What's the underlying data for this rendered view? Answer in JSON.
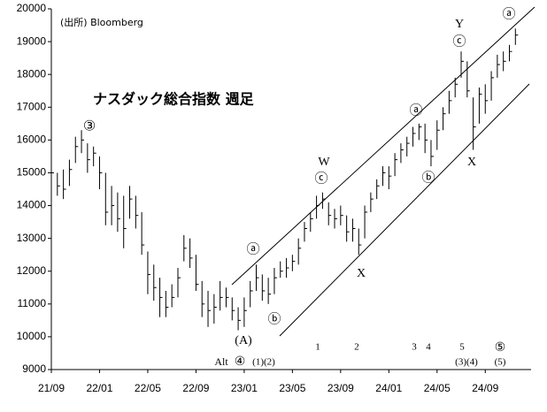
{
  "chart_data": {
    "type": "ohlc",
    "title": "ナスダック総合指数 週足",
    "source": "(出所) Bloomberg",
    "color": "#000000",
    "x": [
      0,
      0.5,
      1,
      1.5,
      2,
      2.5,
      3,
      3.5,
      4,
      4.5,
      5,
      5.5,
      6,
      6.5,
      7,
      7.5,
      8,
      8.5,
      9,
      9.5,
      10,
      10.5,
      11,
      11.5,
      12,
      12.5,
      13,
      13.5,
      14,
      14.5,
      15,
      15.5,
      16,
      16.5,
      17,
      17.5,
      18,
      18.5,
      19,
      19.5,
      20,
      20.5,
      21,
      21.5,
      22,
      22.5,
      23,
      23.5,
      24,
      24.5,
      25,
      25.5,
      26,
      26.5,
      27,
      27.5,
      28,
      28.5,
      29,
      29.5,
      30,
      30.5,
      31,
      31.5,
      32,
      32.5,
      33,
      33.5,
      34,
      34.5,
      35,
      35.5,
      36,
      36.5,
      37,
      37.5,
      38,
      38.5
    ],
    "high": [
      15300,
      15000,
      15100,
      15400,
      16100,
      16300,
      15900,
      15800,
      15500,
      15000,
      14600,
      14400,
      14300,
      14600,
      14300,
      13800,
      12600,
      12200,
      11800,
      11400,
      11600,
      12100,
      13100,
      13000,
      12500,
      11700,
      11400,
      11300,
      11700,
      11500,
      11200,
      10900,
      11200,
      11700,
      12200,
      11900,
      11800,
      12100,
      12300,
      12400,
      12500,
      13000,
      13500,
      13800,
      14300,
      14400,
      14100,
      13900,
      14000,
      13700,
      13600,
      13300,
      14000,
      14400,
      14800,
      15200,
      15200,
      15600,
      15900,
      16100,
      16400,
      16500,
      16500,
      16000,
      16600,
      17000,
      17500,
      17900,
      18700,
      18400,
      17300,
      17600,
      17700,
      18100,
      18600,
      18700,
      18900,
      19400
    ],
    "low": [
      14700,
      14300,
      14200,
      14600,
      15300,
      15600,
      15000,
      15200,
      14500,
      13400,
      13400,
      13200,
      12700,
      13600,
      13300,
      12500,
      11300,
      11100,
      10600,
      10600,
      10900,
      11200,
      12300,
      12100,
      11400,
      10600,
      10300,
      10400,
      10800,
      10900,
      10500,
      10200,
      10300,
      10900,
      11400,
      11100,
      11000,
      11300,
      11800,
      11800,
      12000,
      12200,
      12900,
      13200,
      13600,
      13900,
      13400,
      13300,
      13400,
      12900,
      12900,
      12500,
      13000,
      13800,
      14200,
      14600,
      14500,
      14900,
      15300,
      15500,
      15800,
      16000,
      15600,
      15200,
      15700,
      16300,
      16800,
      17300,
      17900,
      17300,
      15700,
      16500,
      16800,
      17200,
      17900,
      18100,
      18400,
      18900
    ],
    "close": [
      15000,
      14600,
      14500,
      15100,
      15800,
      16000,
      15400,
      15600,
      15000,
      13800,
      14000,
      13600,
      13300,
      14200,
      13700,
      12800,
      11900,
      11500,
      11200,
      10900,
      11200,
      11800,
      12700,
      12400,
      11600,
      11000,
      10800,
      10900,
      11200,
      11200,
      10800,
      10500,
      10800,
      11400,
      11800,
      11400,
      11300,
      11800,
      12000,
      12100,
      12300,
      12700,
      13300,
      13600,
      14000,
      14200,
      13700,
      13600,
      13700,
      13200,
      13300,
      12800,
      13800,
      14200,
      14600,
      15000,
      14900,
      15400,
      15700,
      15900,
      16200,
      16400,
      16000,
      15500,
      16300,
      16800,
      17200,
      17700,
      18400,
      17500,
      16400,
      17400,
      17200,
      17900,
      18300,
      18400,
      18700,
      19200
    ],
    "xlim": [
      0,
      39.8
    ],
    "xticks": [
      {
        "value": 0,
        "label": "21/09"
      },
      {
        "value": 4,
        "label": "22/01"
      },
      {
        "value": 8,
        "label": "22/05"
      },
      {
        "value": 12,
        "label": "22/09"
      },
      {
        "value": 16,
        "label": "23/01"
      },
      {
        "value": 20,
        "label": "23/05"
      },
      {
        "value": 24,
        "label": "23/09"
      },
      {
        "value": 28,
        "label": "24/01"
      },
      {
        "value": 32,
        "label": "24/05"
      },
      {
        "value": 36,
        "label": "24/09"
      }
    ],
    "ylim": [
      9000,
      20000
    ],
    "yticks": [
      9000,
      10000,
      11000,
      12000,
      13000,
      14000,
      15000,
      16000,
      17000,
      18000,
      19000,
      20000
    ],
    "annotations": [
      "③",
      "ⓐ",
      "ⓑ",
      "(A)",
      "Alt",
      "④",
      "(1)(2)",
      "1",
      "2",
      "3",
      "4",
      "5",
      "(3)(4)",
      "⑤",
      "(5)",
      "W",
      "ⓒ",
      "X",
      "ⓐ",
      "ⓑ",
      "Y",
      "ⓒ",
      "X",
      "ⓐ"
    ]
  }
}
